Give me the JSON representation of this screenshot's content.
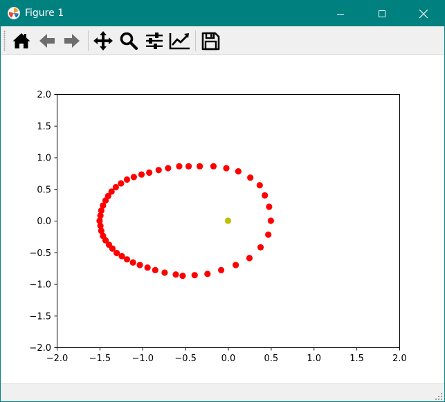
{
  "window": {
    "title": "Figure 1",
    "titlebar_color": "#00807f"
  },
  "toolbar": {
    "buttons": [
      {
        "name": "home-icon"
      },
      {
        "name": "back-arrow-icon"
      },
      {
        "name": "forward-arrow-icon"
      },
      {
        "name": "pan-move-icon"
      },
      {
        "name": "zoom-magnifier-icon"
      },
      {
        "name": "configure-subplots-icon"
      },
      {
        "name": "edit-axis-lines-icon"
      },
      {
        "name": "save-floppy-icon"
      }
    ]
  },
  "status": {
    "text": ""
  },
  "chart_data": {
    "type": "scatter",
    "title": "",
    "xlabel": "",
    "ylabel": "",
    "xlim": [
      -2.0,
      2.0
    ],
    "ylim": [
      -2.0,
      2.0
    ],
    "xticks": [
      "−2.0",
      "−1.5",
      "−1.0",
      "−0.5",
      "0.0",
      "0.5",
      "1.0",
      "1.5",
      "2.0"
    ],
    "yticks": [
      "−2.0",
      "−1.5",
      "−1.0",
      "−0.5",
      "0.0",
      "0.5",
      "1.0",
      "1.5",
      "2.0"
    ],
    "grid": false,
    "series": [
      {
        "color": "#ff0000",
        "points": [
          [
            0.5,
            0.0
          ],
          [
            0.48,
            0.22
          ],
          [
            0.43,
            0.4
          ],
          [
            0.37,
            0.56
          ],
          [
            0.26,
            0.68
          ],
          [
            0.12,
            0.78
          ],
          [
            -0.02,
            0.83
          ],
          [
            -0.17,
            0.86
          ],
          [
            -0.33,
            0.86
          ],
          [
            -0.46,
            0.86
          ],
          [
            -0.57,
            0.86
          ],
          [
            -0.7,
            0.83
          ],
          [
            -0.81,
            0.8
          ],
          [
            -0.92,
            0.76
          ],
          [
            -1.01,
            0.73
          ],
          [
            -1.1,
            0.69
          ],
          [
            -1.18,
            0.65
          ],
          [
            -1.25,
            0.59
          ],
          [
            -1.31,
            0.53
          ],
          [
            -1.36,
            0.46
          ],
          [
            -1.4,
            0.39
          ],
          [
            -1.43,
            0.32
          ],
          [
            -1.46,
            0.24
          ],
          [
            -1.48,
            0.16
          ],
          [
            -1.49,
            0.08
          ],
          [
            -1.5,
            0.0
          ],
          [
            -1.49,
            -0.08
          ],
          [
            -1.48,
            -0.16
          ],
          [
            -1.46,
            -0.24
          ],
          [
            -1.43,
            -0.31
          ],
          [
            -1.39,
            -0.38
          ],
          [
            -1.35,
            -0.44
          ],
          [
            -1.3,
            -0.51
          ],
          [
            -1.24,
            -0.56
          ],
          [
            -1.18,
            -0.61
          ],
          [
            -1.11,
            -0.66
          ],
          [
            -1.03,
            -0.7
          ],
          [
            -0.94,
            -0.74
          ],
          [
            -0.85,
            -0.78
          ],
          [
            -0.74,
            -0.82
          ],
          [
            -0.61,
            -0.85
          ],
          [
            -0.53,
            -0.87
          ],
          [
            -0.39,
            -0.86
          ],
          [
            -0.24,
            -0.84
          ],
          [
            -0.08,
            -0.78
          ],
          [
            0.09,
            -0.7
          ],
          [
            0.25,
            -0.59
          ],
          [
            0.38,
            -0.42
          ],
          [
            0.47,
            -0.22
          ]
        ]
      },
      {
        "color": "#bfbf00",
        "points": [
          [
            0.0,
            0.0
          ]
        ]
      }
    ]
  }
}
